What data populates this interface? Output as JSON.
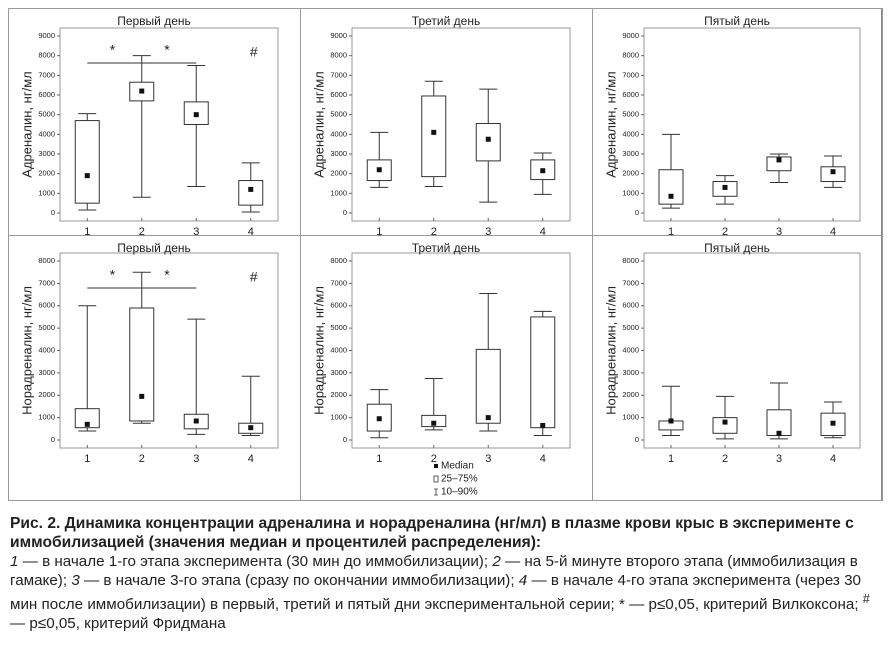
{
  "chart_data": [
    {
      "type": "box",
      "title": "Первый день",
      "ylabel": "Адреналин, нг/мл",
      "categories": [
        "1",
        "2",
        "3",
        "4"
      ],
      "median": [
        1900,
        6200,
        5000,
        1200
      ],
      "q1": [
        500,
        5700,
        4500,
        400
      ],
      "q3": [
        4700,
        6650,
        5650,
        1650
      ],
      "whisker_low": [
        150,
        800,
        1350,
        50
      ],
      "whisker_high": [
        5050,
        8000,
        7500,
        2550
      ],
      "ylim": [
        0,
        9000
      ],
      "yticks": [
        0,
        1000,
        2000,
        3000,
        4000,
        5000,
        6000,
        7000,
        8000,
        9000
      ],
      "annotations": [
        "*",
        "*",
        "#"
      ]
    },
    {
      "type": "box",
      "title": "Третий день",
      "ylabel": "Адреналин, нг/мл",
      "categories": [
        "1",
        "2",
        "3",
        "4"
      ],
      "median": [
        2200,
        4100,
        3750,
        2150
      ],
      "q1": [
        1650,
        1850,
        2650,
        1700
      ],
      "q3": [
        2700,
        5950,
        4550,
        2700
      ],
      "whisker_low": [
        1300,
        1350,
        550,
        950
      ],
      "whisker_high": [
        4100,
        6700,
        6300,
        3050
      ],
      "ylim": [
        0,
        9000
      ],
      "yticks": [
        0,
        1000,
        2000,
        3000,
        4000,
        5000,
        6000,
        7000,
        8000,
        9000
      ]
    },
    {
      "type": "box",
      "title": "Пятый день",
      "ylabel": "Адреналин, нг/мл",
      "categories": [
        "1",
        "2",
        "3",
        "4"
      ],
      "median": [
        850,
        1300,
        2700,
        2100
      ],
      "q1": [
        450,
        850,
        2150,
        1600
      ],
      "q3": [
        2200,
        1600,
        2850,
        2350
      ],
      "whisker_low": [
        250,
        450,
        1550,
        1300
      ],
      "whisker_high": [
        4000,
        1900,
        3000,
        2900
      ],
      "ylim": [
        0,
        9000
      ],
      "yticks": [
        0,
        1000,
        2000,
        3000,
        4000,
        5000,
        6000,
        7000,
        8000,
        9000
      ]
    },
    {
      "type": "box",
      "title": "Первый день",
      "ylabel": "Норадреналин, нг/мл",
      "categories": [
        "1",
        "2",
        "3",
        "4"
      ],
      "median": [
        700,
        1950,
        850,
        550
      ],
      "q1": [
        550,
        850,
        500,
        300
      ],
      "q3": [
        1400,
        5900,
        1150,
        750
      ],
      "whisker_low": [
        400,
        750,
        250,
        200
      ],
      "whisker_high": [
        6000,
        7500,
        5400,
        2850
      ],
      "ylim": [
        0,
        8000
      ],
      "yticks": [
        0,
        1000,
        2000,
        3000,
        4000,
        5000,
        6000,
        7000,
        8000
      ],
      "annotations": [
        "*",
        "*",
        "#"
      ]
    },
    {
      "type": "box",
      "title": "Третий день",
      "ylabel": "Норадреналин, нг/мл",
      "categories": [
        "1",
        "2",
        "3",
        "4"
      ],
      "median": [
        950,
        750,
        1000,
        650
      ],
      "q1": [
        400,
        600,
        750,
        550
      ],
      "q3": [
        1600,
        1100,
        4050,
        5500
      ],
      "whisker_low": [
        100,
        450,
        400,
        200
      ],
      "whisker_high": [
        2250,
        2750,
        6550,
        5750
      ],
      "ylim": [
        0,
        8000
      ],
      "yticks": [
        0,
        1000,
        2000,
        3000,
        4000,
        5000,
        6000,
        7000,
        8000
      ],
      "legend": [
        "Median",
        "25–75%",
        "10–90%"
      ]
    },
    {
      "type": "box",
      "title": "Пятый день",
      "ylabel": "Норадреналин, нг/мл",
      "categories": [
        "1",
        "2",
        "3",
        "4"
      ],
      "median": [
        850,
        800,
        300,
        750
      ],
      "q1": [
        450,
        300,
        200,
        200
      ],
      "q3": [
        850,
        1000,
        1350,
        1200
      ],
      "whisker_low": [
        200,
        50,
        50,
        100
      ],
      "whisker_high": [
        2400,
        1950,
        2550,
        1700
      ],
      "ylim": [
        0,
        8000
      ],
      "yticks": [
        0,
        1000,
        2000,
        3000,
        4000,
        5000,
        6000,
        7000,
        8000
      ]
    }
  ],
  "caption": {
    "title": "Рис. 2. Динамика концентрации адреналина и норадреналина (нг/мл) в плазме крови крыс в эксперименте с иммобилизацией (значения медиан и процентилей распределения):",
    "body": [
      "1",
      " — в начале 1-го этапа эксперимента (30 мин до иммобилизации); ",
      "2",
      " — на 5-й минуте второго этапа (иммобилизация в гамаке); ",
      "3",
      " — в начале 3-го этапа (сразу по окончании иммобилизации); ",
      "4",
      " — в начале 4-го этапа эксперимента (через 30 мин после иммобилизации) в первый, третий и пятый дни экспериментальной серии; ",
      "* — p≤0,05, критерий Вилкоксона; ",
      "#",
      " — p≤0,05, критерий Фридмана"
    ]
  }
}
